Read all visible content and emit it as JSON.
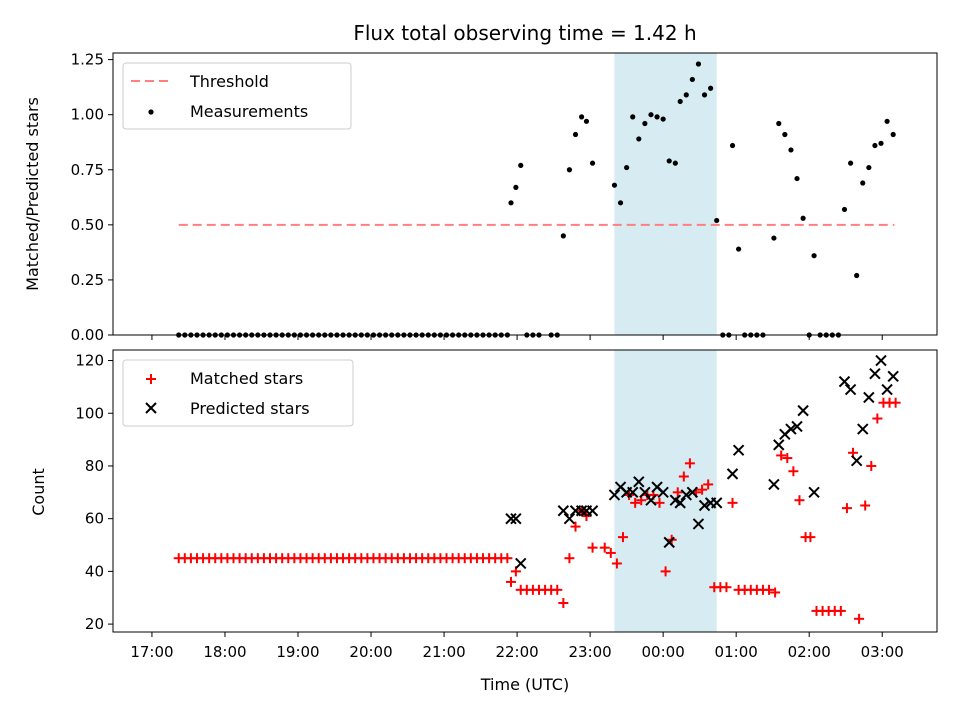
{
  "chart_data": {
    "type": "scatter",
    "title": "Flux total observing time = 1.42 h",
    "xlabel": "Time (UTC)",
    "x_ticks": [
      "17:00",
      "18:00",
      "19:00",
      "20:00",
      "21:00",
      "22:00",
      "23:00",
      "00:00",
      "01:00",
      "02:00",
      "03:00"
    ],
    "shaded_region": {
      "start": "23:20",
      "end": "00:44",
      "color": "#add8e6"
    },
    "top": {
      "ylabel": "Matched/Predicted stars",
      "ylim": [
        0,
        1.28
      ],
      "y_ticks": [
        "0.00",
        "0.25",
        "0.50",
        "0.75",
        "1.00",
        "1.25"
      ],
      "legend_placement": "top-left",
      "threshold": {
        "name": "Threshold",
        "value": 0.5,
        "x_start": "17:22",
        "x_end": "03:10",
        "color": "#ff7f7f"
      },
      "measurements": {
        "name": "Measurements",
        "color": "#000000",
        "points": [
          [
            "17:22",
            0
          ],
          [
            "17:27",
            0
          ],
          [
            "17:32",
            0
          ],
          [
            "17:37",
            0
          ],
          [
            "17:42",
            0
          ],
          [
            "17:47",
            0
          ],
          [
            "17:52",
            0
          ],
          [
            "17:57",
            0
          ],
          [
            "18:02",
            0
          ],
          [
            "18:07",
            0
          ],
          [
            "18:12",
            0
          ],
          [
            "18:17",
            0
          ],
          [
            "18:22",
            0
          ],
          [
            "18:27",
            0
          ],
          [
            "18:32",
            0
          ],
          [
            "18:37",
            0
          ],
          [
            "18:42",
            0
          ],
          [
            "18:47",
            0
          ],
          [
            "18:52",
            0
          ],
          [
            "18:57",
            0
          ],
          [
            "19:02",
            0
          ],
          [
            "19:07",
            0
          ],
          [
            "19:12",
            0
          ],
          [
            "19:17",
            0
          ],
          [
            "19:22",
            0
          ],
          [
            "19:27",
            0
          ],
          [
            "19:32",
            0
          ],
          [
            "19:37",
            0
          ],
          [
            "19:42",
            0
          ],
          [
            "19:47",
            0
          ],
          [
            "19:52",
            0
          ],
          [
            "19:57",
            0
          ],
          [
            "20:02",
            0
          ],
          [
            "20:07",
            0
          ],
          [
            "20:12",
            0
          ],
          [
            "20:17",
            0
          ],
          [
            "20:22",
            0
          ],
          [
            "20:27",
            0
          ],
          [
            "20:32",
            0
          ],
          [
            "20:37",
            0
          ],
          [
            "20:42",
            0
          ],
          [
            "20:47",
            0
          ],
          [
            "20:52",
            0
          ],
          [
            "20:57",
            0
          ],
          [
            "21:02",
            0
          ],
          [
            "21:07",
            0
          ],
          [
            "21:12",
            0
          ],
          [
            "21:17",
            0
          ],
          [
            "21:22",
            0
          ],
          [
            "21:27",
            0
          ],
          [
            "21:32",
            0
          ],
          [
            "21:37",
            0
          ],
          [
            "21:42",
            0
          ],
          [
            "21:47",
            0
          ],
          [
            "21:52",
            0
          ],
          [
            "21:55",
            0.6
          ],
          [
            "21:59",
            0.67
          ],
          [
            "22:03",
            0.77
          ],
          [
            "22:08",
            0
          ],
          [
            "22:13",
            0
          ],
          [
            "22:18",
            0
          ],
          [
            "22:28",
            0
          ],
          [
            "22:33",
            0
          ],
          [
            "22:38",
            0.45
          ],
          [
            "22:43",
            0.75
          ],
          [
            "22:48",
            0.91
          ],
          [
            "22:53",
            0.99
          ],
          [
            "22:57",
            0.97
          ],
          [
            "23:02",
            0.78
          ],
          [
            "23:20",
            0.68
          ],
          [
            "23:25",
            0.6
          ],
          [
            "23:30",
            0.76
          ],
          [
            "23:35",
            0.99
          ],
          [
            "23:40",
            0.89
          ],
          [
            "23:45",
            0.96
          ],
          [
            "23:50",
            1.0
          ],
          [
            "23:55",
            0.99
          ],
          [
            "00:00",
            0.98
          ],
          [
            "00:05",
            0.79
          ],
          [
            "00:10",
            0.78
          ],
          [
            "00:14",
            1.06
          ],
          [
            "00:19",
            1.09
          ],
          [
            "00:24",
            1.16
          ],
          [
            "00:29",
            1.23
          ],
          [
            "00:34",
            1.09
          ],
          [
            "00:39",
            1.12
          ],
          [
            "00:44",
            0.52
          ],
          [
            "00:49",
            0
          ],
          [
            "00:54",
            0
          ],
          [
            "00:57",
            0.86
          ],
          [
            "01:02",
            0.39
          ],
          [
            "01:07",
            0
          ],
          [
            "01:12",
            0
          ],
          [
            "01:17",
            0
          ],
          [
            "01:22",
            0
          ],
          [
            "01:31",
            0.44
          ],
          [
            "01:35",
            0.96
          ],
          [
            "01:40",
            0.91
          ],
          [
            "01:45",
            0.84
          ],
          [
            "01:50",
            0.71
          ],
          [
            "01:55",
            0.53
          ],
          [
            "02:00",
            0
          ],
          [
            "02:04",
            0.36
          ],
          [
            "02:09",
            0
          ],
          [
            "02:14",
            0
          ],
          [
            "02:19",
            0
          ],
          [
            "02:24",
            0
          ],
          [
            "02:29",
            0.57
          ],
          [
            "02:34",
            0.78
          ],
          [
            "02:39",
            0.27
          ],
          [
            "02:44",
            0.69
          ],
          [
            "02:49",
            0.76
          ],
          [
            "02:54",
            0.86
          ],
          [
            "02:59",
            0.87
          ],
          [
            "03:04",
            0.97
          ],
          [
            "03:09",
            0.91
          ]
        ]
      }
    },
    "bottom": {
      "ylabel": "Count",
      "ylim": [
        17,
        124
      ],
      "y_ticks": [
        "20",
        "40",
        "60",
        "80",
        "100",
        "120"
      ],
      "legend_placement": "top-left",
      "series": [
        {
          "name": "Matched stars",
          "marker": "plus",
          "color": "#ff0000",
          "points": [
            [
              "17:22",
              45
            ],
            [
              "17:27",
              45
            ],
            [
              "17:32",
              45
            ],
            [
              "17:37",
              45
            ],
            [
              "17:42",
              45
            ],
            [
              "17:47",
              45
            ],
            [
              "17:52",
              45
            ],
            [
              "17:57",
              45
            ],
            [
              "18:02",
              45
            ],
            [
              "18:07",
              45
            ],
            [
              "18:12",
              45
            ],
            [
              "18:17",
              45
            ],
            [
              "18:22",
              45
            ],
            [
              "18:27",
              45
            ],
            [
              "18:32",
              45
            ],
            [
              "18:37",
              45
            ],
            [
              "18:42",
              45
            ],
            [
              "18:47",
              45
            ],
            [
              "18:52",
              45
            ],
            [
              "18:57",
              45
            ],
            [
              "19:02",
              45
            ],
            [
              "19:07",
              45
            ],
            [
              "19:12",
              45
            ],
            [
              "19:17",
              45
            ],
            [
              "19:22",
              45
            ],
            [
              "19:27",
              45
            ],
            [
              "19:32",
              45
            ],
            [
              "19:37",
              45
            ],
            [
              "19:42",
              45
            ],
            [
              "19:47",
              45
            ],
            [
              "19:52",
              45
            ],
            [
              "19:57",
              45
            ],
            [
              "20:02",
              45
            ],
            [
              "20:07",
              45
            ],
            [
              "20:12",
              45
            ],
            [
              "20:17",
              45
            ],
            [
              "20:22",
              45
            ],
            [
              "20:27",
              45
            ],
            [
              "20:32",
              45
            ],
            [
              "20:37",
              45
            ],
            [
              "20:42",
              45
            ],
            [
              "20:47",
              45
            ],
            [
              "20:52",
              45
            ],
            [
              "20:57",
              45
            ],
            [
              "21:02",
              45
            ],
            [
              "21:07",
              45
            ],
            [
              "21:12",
              45
            ],
            [
              "21:17",
              45
            ],
            [
              "21:22",
              45
            ],
            [
              "21:27",
              45
            ],
            [
              "21:32",
              45
            ],
            [
              "21:37",
              45
            ],
            [
              "21:42",
              45
            ],
            [
              "21:47",
              45
            ],
            [
              "21:52",
              45
            ],
            [
              "21:55",
              36
            ],
            [
              "21:59",
              40
            ],
            [
              "22:03",
              33
            ],
            [
              "22:08",
              33
            ],
            [
              "22:13",
              33
            ],
            [
              "22:18",
              33
            ],
            [
              "22:23",
              33
            ],
            [
              "22:28",
              33
            ],
            [
              "22:33",
              33
            ],
            [
              "22:38",
              28
            ],
            [
              "22:43",
              45
            ],
            [
              "22:48",
              57
            ],
            [
              "22:53",
              63
            ],
            [
              "22:57",
              61
            ],
            [
              "23:02",
              49
            ],
            [
              "23:12",
              49
            ],
            [
              "23:17",
              47
            ],
            [
              "23:22",
              43
            ],
            [
              "23:27",
              53
            ],
            [
              "23:32",
              69
            ],
            [
              "23:37",
              66
            ],
            [
              "23:42",
              67
            ],
            [
              "23:47",
              69
            ],
            [
              "23:52",
              69
            ],
            [
              "23:57",
              66
            ],
            [
              "00:02",
              40
            ],
            [
              "00:07",
              52
            ],
            [
              "00:12",
              70
            ],
            [
              "00:17",
              76
            ],
            [
              "00:22",
              81
            ],
            [
              "00:27",
              70
            ],
            [
              "00:32",
              71
            ],
            [
              "00:37",
              73
            ],
            [
              "00:42",
              34
            ],
            [
              "00:47",
              34
            ],
            [
              "00:52",
              34
            ],
            [
              "00:57",
              66
            ],
            [
              "01:02",
              33
            ],
            [
              "01:07",
              33
            ],
            [
              "01:12",
              33
            ],
            [
              "01:17",
              33
            ],
            [
              "01:22",
              33
            ],
            [
              "01:27",
              33
            ],
            [
              "01:32",
              32
            ],
            [
              "01:37",
              84
            ],
            [
              "01:42",
              83
            ],
            [
              "01:47",
              78
            ],
            [
              "01:52",
              67
            ],
            [
              "01:57",
              53
            ],
            [
              "02:01",
              53
            ],
            [
              "02:06",
              25
            ],
            [
              "02:11",
              25
            ],
            [
              "02:16",
              25
            ],
            [
              "02:21",
              25
            ],
            [
              "02:26",
              25
            ],
            [
              "02:31",
              64
            ],
            [
              "02:36",
              85
            ],
            [
              "02:41",
              22
            ],
            [
              "02:46",
              65
            ],
            [
              "02:51",
              80
            ],
            [
              "02:56",
              98
            ],
            [
              "03:01",
              104
            ],
            [
              "03:06",
              104
            ],
            [
              "03:11",
              104
            ]
          ]
        },
        {
          "name": "Predicted stars",
          "marker": "x",
          "color": "#000000",
          "points": [
            [
              "21:55",
              60
            ],
            [
              "21:59",
              60
            ],
            [
              "22:03",
              43
            ],
            [
              "22:38",
              63
            ],
            [
              "22:43",
              60
            ],
            [
              "22:48",
              63
            ],
            [
              "22:53",
              63
            ],
            [
              "22:57",
              63
            ],
            [
              "23:02",
              63
            ],
            [
              "23:20",
              69
            ],
            [
              "23:25",
              72
            ],
            [
              "23:30",
              70
            ],
            [
              "23:35",
              70
            ],
            [
              "23:40",
              74
            ],
            [
              "23:45",
              70
            ],
            [
              "23:50",
              67
            ],
            [
              "23:55",
              72
            ],
            [
              "00:00",
              70
            ],
            [
              "00:05",
              51
            ],
            [
              "00:10",
              67
            ],
            [
              "00:14",
              66
            ],
            [
              "00:19",
              69
            ],
            [
              "00:24",
              70
            ],
            [
              "00:29",
              58
            ],
            [
              "00:34",
              65
            ],
            [
              "00:39",
              66
            ],
            [
              "00:44",
              66
            ],
            [
              "00:57",
              77
            ],
            [
              "01:02",
              86
            ],
            [
              "01:31",
              73
            ],
            [
              "01:35",
              88
            ],
            [
              "01:40",
              92
            ],
            [
              "01:45",
              94
            ],
            [
              "01:50",
              95
            ],
            [
              "01:55",
              101
            ],
            [
              "02:04",
              70
            ],
            [
              "02:29",
              112
            ],
            [
              "02:34",
              109
            ],
            [
              "02:39",
              82
            ],
            [
              "02:44",
              94
            ],
            [
              "02:49",
              106
            ],
            [
              "02:54",
              115
            ],
            [
              "02:59",
              120
            ],
            [
              "03:04",
              109
            ],
            [
              "03:09",
              114
            ]
          ]
        }
      ]
    }
  }
}
